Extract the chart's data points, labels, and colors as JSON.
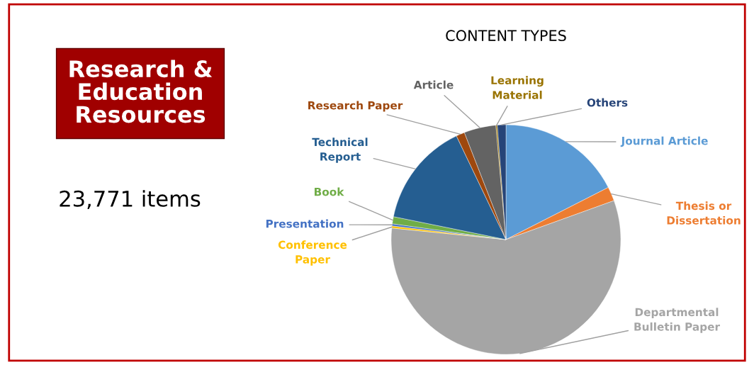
{
  "chart_data": {
    "type": "pie",
    "title": "CONTENT TYPES",
    "categories": [
      "Journal Article",
      "Thesis or\nDissertation",
      "Departmental\nBulletin Paper",
      "Conference\nPaper",
      "Presentation",
      "Book",
      "Technical\nReport",
      "Research Paper",
      "Article",
      "Learning\nMaterial",
      "Others"
    ],
    "values": [
      17.5,
      2,
      57.1,
      0.3,
      0.3,
      1,
      14.7,
      1.2,
      4.5,
      0.2,
      1.2
    ],
    "colors": [
      "#5b9bd5",
      "#ed7d31",
      "#a5a5a5",
      "#ffc000",
      "#4472c4",
      "#70ad47",
      "#255e91",
      "#9e480e",
      "#636363",
      "#997300",
      "#264478"
    ],
    "annotations": [
      "Research &\nEducation\nResources",
      "23,771 items"
    ],
    "legend": false
  }
}
